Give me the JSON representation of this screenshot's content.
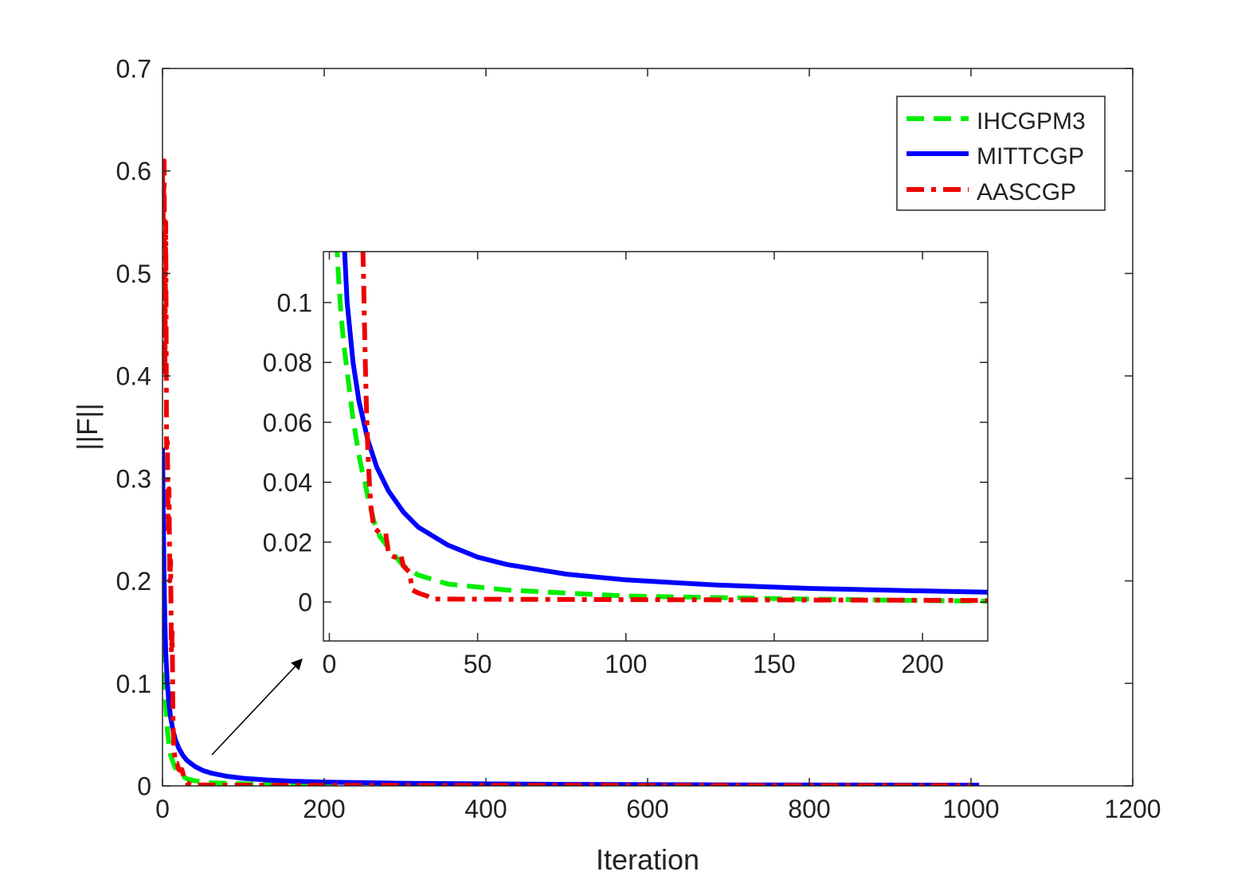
{
  "chart_data": [
    {
      "type": "line",
      "role": "main",
      "xlabel": "Iteration",
      "ylabel": "||F||",
      "xlim": [
        0,
        1200
      ],
      "ylim": [
        0,
        0.7
      ],
      "xticks": [
        0,
        200,
        400,
        600,
        800,
        1000,
        1200
      ],
      "xtick_labels": [
        "0",
        "200",
        "400",
        "600",
        "800",
        "1000",
        "1200"
      ],
      "yticks": [
        0,
        0.1,
        0.2,
        0.3,
        0.4,
        0.5,
        0.6,
        0.7
      ],
      "ytick_labels": [
        "0",
        "0.1",
        "0.2",
        "0.3",
        "0.4",
        "0.5",
        "0.6",
        "0.7"
      ],
      "grid": false,
      "legend_position": "top-right",
      "series": [
        {
          "name": "IHCGPM3",
          "color": "#00ee00",
          "style": "dashed",
          "x": [
            0,
            1,
            2,
            3,
            4,
            6,
            8,
            10,
            15,
            20,
            30,
            40,
            60,
            100,
            200,
            400,
            1000
          ],
          "y": [
            0.19,
            0.15,
            0.12,
            0.1,
            0.08,
            0.055,
            0.04,
            0.03,
            0.019,
            0.012,
            0.007,
            0.005,
            0.003,
            0.002,
            0.001,
            0.0005,
            0.0002
          ]
        },
        {
          "name": "MITTCGP",
          "color": "#0000ff",
          "style": "solid",
          "x": [
            0,
            1,
            2,
            3,
            4,
            6,
            8,
            10,
            13,
            16,
            20,
            25,
            30,
            40,
            50,
            60,
            80,
            100,
            130,
            160,
            200,
            300,
            500,
            700,
            1010
          ],
          "y": [
            0.33,
            0.26,
            0.2,
            0.16,
            0.13,
            0.1,
            0.08,
            0.067,
            0.054,
            0.045,
            0.037,
            0.03,
            0.025,
            0.019,
            0.015,
            0.0125,
            0.0093,
            0.0074,
            0.0057,
            0.0046,
            0.0037,
            0.0025,
            0.0015,
            0.001,
            0.0007
          ]
        },
        {
          "name": "AASCGP",
          "color": "#ee0000",
          "style": "dashdot",
          "x": [
            0,
            1,
            2,
            3,
            4,
            5,
            6,
            7,
            8,
            9,
            10,
            11,
            12,
            13,
            14,
            15,
            16,
            18,
            20,
            22,
            24,
            26,
            28,
            30,
            35,
            40,
            60,
            100,
            200,
            400,
            700,
            1000
          ],
          "y": [
            0.6,
            0.55,
            0.61,
            0.4,
            0.55,
            0.33,
            0.34,
            0.25,
            0.29,
            0.2,
            0.22,
            0.13,
            0.15,
            0.06,
            0.04,
            0.03,
            0.022,
            0.022,
            0.016,
            0.015,
            0.016,
            0.01,
            0.005,
            0.003,
            0.001,
            0.001,
            0.0008,
            0.0006,
            0.0005,
            0.0005,
            0.0004,
            0.0004
          ]
        }
      ]
    },
    {
      "type": "line",
      "role": "inset",
      "xlim": [
        -2,
        222
      ],
      "ylim": [
        -0.013,
        0.117
      ],
      "xticks": [
        0,
        50,
        100,
        150,
        200
      ],
      "xtick_labels": [
        "0",
        "50",
        "100",
        "150",
        "200"
      ],
      "yticks": [
        0,
        0.02,
        0.04,
        0.06,
        0.08,
        0.1
      ],
      "ytick_labels": [
        "0",
        "0.02",
        "0.04",
        "0.06",
        "0.08",
        "0.1"
      ],
      "grid": false,
      "series": [
        {
          "name": "IHCGPM3",
          "color": "#00ee00",
          "style": "dashed",
          "x": [
            2,
            3,
            4,
            5,
            6,
            7,
            8,
            9,
            10,
            11,
            12,
            13,
            15,
            17,
            20,
            25,
            30,
            40,
            50,
            60,
            80,
            100,
            130,
            160,
            200,
            222
          ],
          "y": [
            0.13,
            0.11,
            0.095,
            0.085,
            0.077,
            0.069,
            0.061,
            0.055,
            0.049,
            0.044,
            0.04,
            0.035,
            0.027,
            0.022,
            0.018,
            0.012,
            0.009,
            0.006,
            0.005,
            0.004,
            0.003,
            0.002,
            0.0015,
            0.001,
            0.0005,
            0.0003
          ]
        },
        {
          "name": "MITTCGP",
          "color": "#0000ff",
          "style": "solid",
          "x": [
            5,
            6,
            8,
            10,
            13,
            16,
            20,
            25,
            30,
            40,
            50,
            60,
            80,
            100,
            130,
            160,
            200,
            222
          ],
          "y": [
            0.12,
            0.1,
            0.08,
            0.067,
            0.054,
            0.045,
            0.037,
            0.03,
            0.025,
            0.019,
            0.015,
            0.0125,
            0.0093,
            0.0074,
            0.0057,
            0.0046,
            0.0037,
            0.0033
          ]
        },
        {
          "name": "AASCGP",
          "color": "#ee0000",
          "style": "dashdot",
          "x": [
            11,
            11.5,
            12,
            12.5,
            13,
            13.5,
            14,
            15,
            17,
            19,
            20,
            22,
            24,
            25,
            27,
            28,
            30,
            33,
            35,
            40,
            60,
            100,
            200,
            222
          ],
          "y": [
            0.13,
            0.11,
            0.085,
            0.065,
            0.05,
            0.04,
            0.032,
            0.025,
            0.023,
            0.023,
            0.016,
            0.015,
            0.016,
            0.012,
            0.01,
            0.004,
            0.003,
            0.002,
            0.001,
            0.001,
            0.0009,
            0.0008,
            0.0006,
            0.0005
          ]
        }
      ]
    }
  ]
}
